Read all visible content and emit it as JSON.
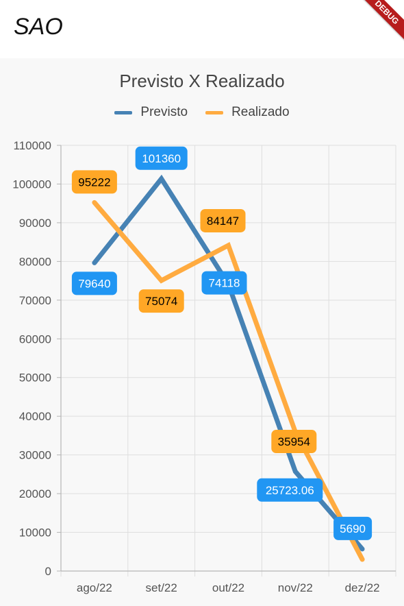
{
  "app": {
    "title": "SAO",
    "debug_label": "DEBUG"
  },
  "chart_data": {
    "type": "line",
    "title": "Previsto X Realizado",
    "categories": [
      "ago/22",
      "set/22",
      "out/22",
      "nov/22",
      "dez/22"
    ],
    "series": [
      {
        "name": "Previsto",
        "color": "#4682b4",
        "label_color": "#2196f3",
        "label_text_color": "#ffffff",
        "values": [
          79640,
          101360,
          74118,
          25723.06,
          5690
        ],
        "labels": [
          "79640",
          "101360",
          "74118",
          "25723.06",
          "5690"
        ]
      },
      {
        "name": "Realizado",
        "color": "#ffab40",
        "label_color": "#ffa726",
        "label_text_color": "#000000",
        "values": [
          95222,
          75074,
          84147,
          35954,
          3000
        ],
        "labels": [
          "95222",
          "75074",
          "84147",
          "35954",
          ""
        ]
      }
    ],
    "ylim": [
      0,
      110000
    ],
    "yticks": [
      0,
      10000,
      20000,
      30000,
      40000,
      50000,
      60000,
      70000,
      80000,
      90000,
      100000,
      110000
    ],
    "grid": true,
    "legend_position": "top"
  }
}
